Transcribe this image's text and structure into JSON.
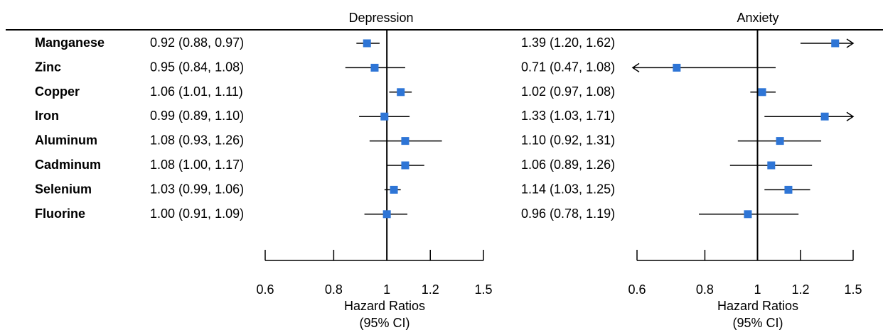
{
  "chart_data": {
    "type": "forest",
    "rows": [
      "Manganese",
      "Zinc",
      "Copper",
      "Iron",
      "Aluminum",
      "Cadminum",
      "Selenium",
      "Fluorine"
    ],
    "scale": "log",
    "panels": [
      {
        "title": "Depression",
        "reference": 1,
        "xlim": [
          0.6,
          1.5
        ],
        "ticks": [
          0.6,
          0.8,
          1,
          1.2,
          1.5
        ],
        "tick_labels": [
          "0.6",
          "0.8",
          "1",
          "1.2",
          "1.5"
        ],
        "xlabel_line1": "Hazard Ratios",
        "xlabel_line2": "(95% CI)",
        "estimates": [
          {
            "hr": 0.92,
            "lo": 0.88,
            "hi": 0.97,
            "text": "0.92 (0.88, 0.97)"
          },
          {
            "hr": 0.95,
            "lo": 0.84,
            "hi": 1.08,
            "text": "0.95 (0.84, 1.08)"
          },
          {
            "hr": 1.06,
            "lo": 1.01,
            "hi": 1.11,
            "text": "1.06 (1.01, 1.11)"
          },
          {
            "hr": 0.99,
            "lo": 0.89,
            "hi": 1.1,
            "text": "0.99 (0.89, 1.10)"
          },
          {
            "hr": 1.08,
            "lo": 0.93,
            "hi": 1.26,
            "text": "1.08 (0.93, 1.26)"
          },
          {
            "hr": 1.08,
            "lo": 1.0,
            "hi": 1.17,
            "text": "1.08 (1.00, 1.17)"
          },
          {
            "hr": 1.03,
            "lo": 0.99,
            "hi": 1.06,
            "text": "1.03 (0.99, 1.06)"
          },
          {
            "hr": 1.0,
            "lo": 0.91,
            "hi": 1.09,
            "text": "1.00 (0.91, 1.09)"
          }
        ]
      },
      {
        "title": "Anxiety",
        "reference": 1,
        "xlim": [
          0.6,
          1.5
        ],
        "ticks": [
          0.6,
          0.8,
          1,
          1.2,
          1.5
        ],
        "tick_labels": [
          "0.6",
          "0.8",
          "1",
          "1.2",
          "1.5"
        ],
        "xlabel_line1": "Hazard Ratios",
        "xlabel_line2": "(95% CI)",
        "estimates": [
          {
            "hr": 1.39,
            "lo": 1.2,
            "hi": 1.62,
            "text": "1.39 (1.20, 1.62)"
          },
          {
            "hr": 0.71,
            "lo": 0.47,
            "hi": 1.08,
            "text": "0.71 (0.47, 1.08)"
          },
          {
            "hr": 1.02,
            "lo": 0.97,
            "hi": 1.08,
            "text": "1.02 (0.97, 1.08)"
          },
          {
            "hr": 1.33,
            "lo": 1.03,
            "hi": 1.71,
            "text": "1.33 (1.03, 1.71)"
          },
          {
            "hr": 1.1,
            "lo": 0.92,
            "hi": 1.31,
            "text": "1.10 (0.92, 1.31)"
          },
          {
            "hr": 1.06,
            "lo": 0.89,
            "hi": 1.26,
            "text": "1.06 (0.89, 1.26)"
          },
          {
            "hr": 1.14,
            "lo": 1.03,
            "hi": 1.25,
            "text": "1.14 (1.03, 1.25)"
          },
          {
            "hr": 0.96,
            "lo": 0.78,
            "hi": 1.19,
            "text": "0.96 (0.78, 1.19)"
          }
        ]
      }
    ],
    "colors": {
      "marker": "#2e75d6",
      "line": "#000000"
    }
  }
}
